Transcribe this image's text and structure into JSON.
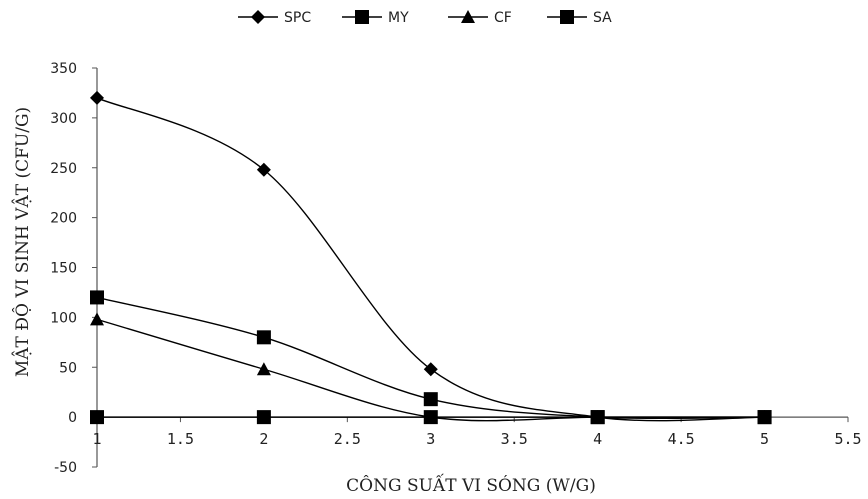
{
  "chart_data": {
    "type": "line",
    "smooth": true,
    "xlabel": "CÔNG SUẤT VI SÓNG (W/G)",
    "ylabel": "MẬT ĐỘ VI SINH VẬT (CFU/G)",
    "xlim": [
      1,
      5.5
    ],
    "ylim": [
      -50,
      350
    ],
    "xticks": [
      "1",
      "1.5",
      "2",
      "2.5",
      "3",
      "3.5",
      "4",
      "4.5",
      "5",
      "5.5"
    ],
    "yticks": [
      "-50",
      "0",
      "50",
      "100",
      "150",
      "200",
      "250",
      "300",
      "350"
    ],
    "legend_position": "top",
    "grid": false,
    "series": [
      {
        "name": "SPC",
        "marker": "diamond",
        "color": "#000000",
        "points": [
          [
            1,
            320
          ],
          [
            2,
            248
          ],
          [
            3,
            48
          ],
          [
            4,
            0
          ],
          [
            5,
            0
          ]
        ]
      },
      {
        "name": "MY",
        "marker": "square",
        "color": "#000000",
        "points": [
          [
            1,
            0
          ],
          [
            2,
            0
          ],
          [
            3,
            0
          ],
          [
            4,
            0
          ],
          [
            5,
            0
          ]
        ]
      },
      {
        "name": "CF",
        "marker": "triangle",
        "color": "#000000",
        "points": [
          [
            1,
            98
          ],
          [
            2,
            48
          ],
          [
            3,
            0
          ],
          [
            4,
            0
          ],
          [
            5,
            0
          ]
        ]
      },
      {
        "name": "SA",
        "marker": "square",
        "color": "#000000",
        "points": [
          [
            1,
            120
          ],
          [
            2,
            80
          ],
          [
            3,
            18
          ],
          [
            4,
            0
          ],
          [
            5,
            0
          ]
        ]
      }
    ]
  }
}
